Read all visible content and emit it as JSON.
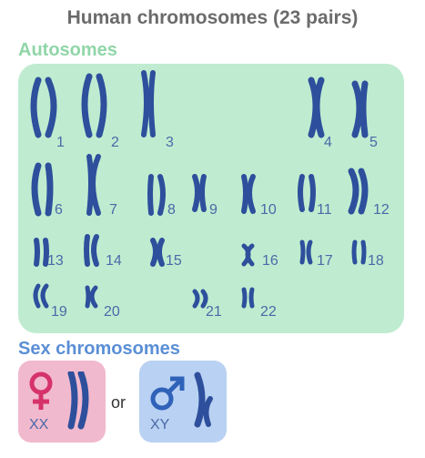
{
  "title": "Human chromosomes (23 pairs)",
  "autosomes_heading": "Autosomes",
  "sex_heading": "Sex chromosomes",
  "colors": {
    "title": "#6b6b6b",
    "autosome_heading": "#90d6a8",
    "sex_heading": "#5b8fd6",
    "autosome_panel": "#bfecd0",
    "female_box": "#f1b9cd",
    "male_box": "#b9d1f2",
    "chromosome": "#2d4f9c",
    "number": "#4a6aa8",
    "female_symbol": "#d6336a",
    "male_symbol": "#2f62b8"
  },
  "autosomes": [
    {
      "number": "1"
    },
    {
      "number": "2"
    },
    {
      "number": "3"
    },
    {
      "number": "4"
    },
    {
      "number": "5"
    },
    {
      "number": "6"
    },
    {
      "number": "7"
    },
    {
      "number": "8"
    },
    {
      "number": "9"
    },
    {
      "number": "10"
    },
    {
      "number": "11"
    },
    {
      "number": "12"
    },
    {
      "number": "13"
    },
    {
      "number": "14"
    },
    {
      "number": "15"
    },
    {
      "number": "16"
    },
    {
      "number": "17"
    },
    {
      "number": "18"
    },
    {
      "number": "19"
    },
    {
      "number": "20"
    },
    {
      "number": "21"
    },
    {
      "number": "22"
    }
  ],
  "sex": {
    "female": {
      "label": "XX",
      "symbol": "female-symbol"
    },
    "or": "or",
    "male": {
      "label": "XY",
      "symbol": "male-symbol"
    }
  }
}
